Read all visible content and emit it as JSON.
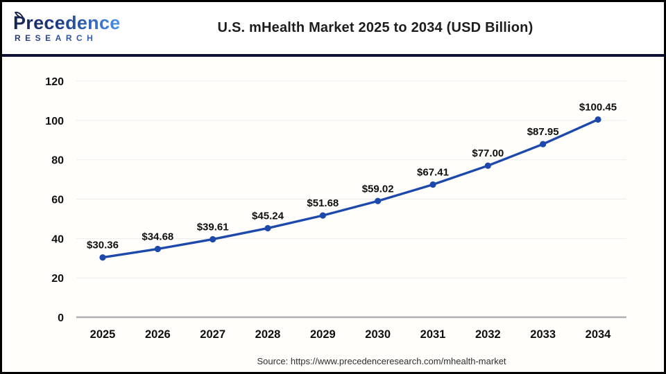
{
  "header": {
    "logo": {
      "alt": "Precedence Research logo",
      "line1": "Precedence",
      "line2": "RESEARCH"
    }
  },
  "chart_data": {
    "type": "line",
    "title": "U.S. mHealth Market 2025 to 2034 (USD Billion)",
    "categories": [
      "2025",
      "2026",
      "2027",
      "2028",
      "2029",
      "2030",
      "2031",
      "2032",
      "2033",
      "2034"
    ],
    "values": [
      30.36,
      34.68,
      39.61,
      45.24,
      51.68,
      59.02,
      67.41,
      77.0,
      87.95,
      100.45
    ],
    "data_labels": [
      "$30.36",
      "$34.68",
      "$39.61",
      "$45.24",
      "$51.68",
      "$59.02",
      "$67.41",
      "$77.00",
      "$87.95",
      "$100.45"
    ],
    "xlabel": "",
    "ylabel": "",
    "ylim": [
      0,
      120
    ],
    "yticks": [
      0,
      20,
      40,
      60,
      80,
      100,
      120
    ],
    "grid": true,
    "legend": "none",
    "marker": "circle"
  },
  "footer": {
    "source": "Source: https://www.precedenceresearch.com/mhealth-market"
  },
  "colors": {
    "line": "#1d49ac",
    "divider": "#0d0f33",
    "grid": "#ececec",
    "axis_line": "#b0b0b0",
    "text": "#0f0f0f",
    "logo_navy": "#16244c",
    "logo_blue": "#3c7ad2"
  }
}
